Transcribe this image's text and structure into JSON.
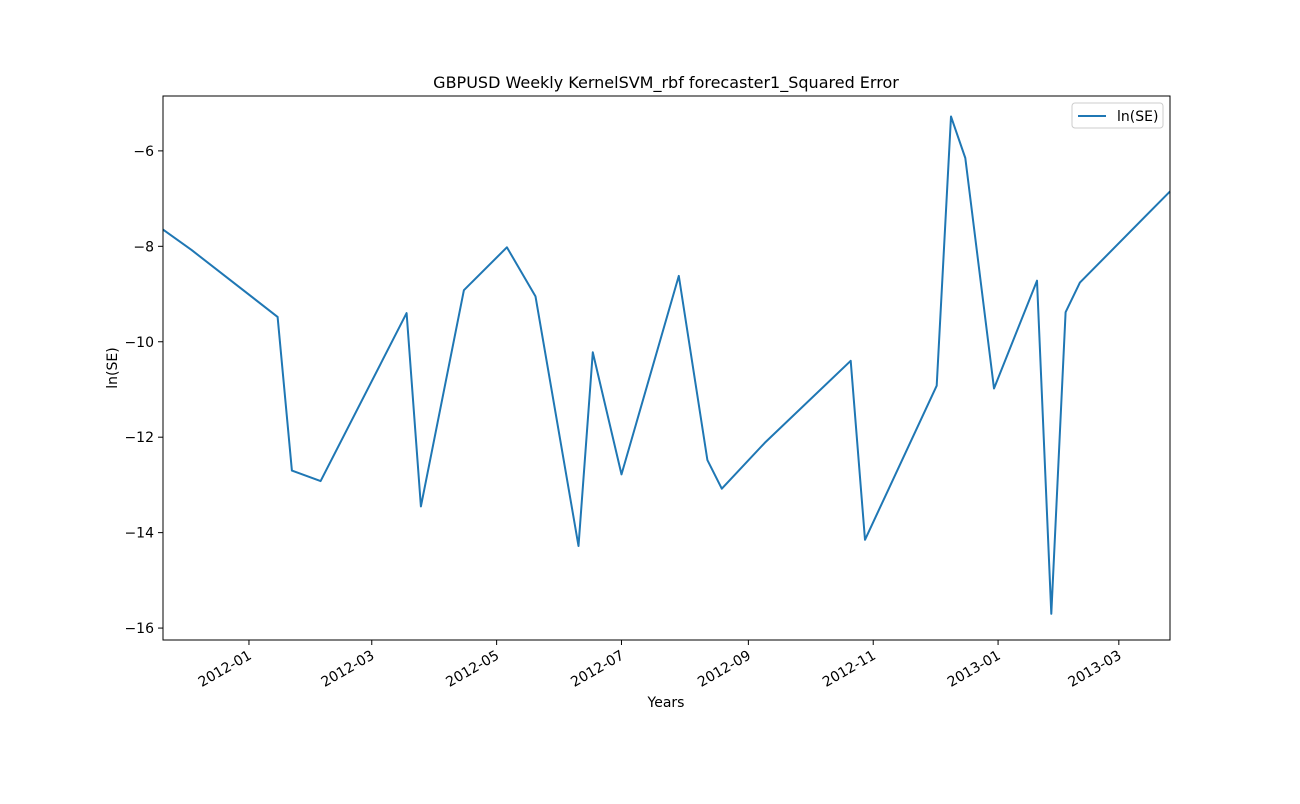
{
  "chart_data": {
    "type": "line",
    "title": "GBPUSD Weekly KernelSVM_rbf forecaster1_Squared Error",
    "xlabel": "Years",
    "ylabel": "ln(SE)",
    "x_axis_type": "date",
    "xlim": [
      "2011-11-20",
      "2013-03-26"
    ],
    "ylim": [
      -16.25,
      -4.85
    ],
    "x_ticks": [
      "2012-01-01",
      "2012-03-01",
      "2012-05-01",
      "2012-07-01",
      "2012-09-01",
      "2012-11-01",
      "2013-01-01",
      "2013-03-01"
    ],
    "x_tick_labels": [
      "2012-01",
      "2012-03",
      "2012-05",
      "2012-07",
      "2012-09",
      "2012-11",
      "2013-01",
      "2013-03"
    ],
    "y_ticks": [
      -6,
      -8,
      -10,
      -12,
      -14,
      -16
    ],
    "y_tick_labels": [
      "−6",
      "−8",
      "−10",
      "−12",
      "−14",
      "−16"
    ],
    "grid": false,
    "legend": {
      "position": "top-right",
      "entries": [
        "ln(SE)"
      ]
    },
    "series": [
      {
        "name": "ln(SE)",
        "color": "#1f77b4",
        "x": [
          "2011-11-20",
          "2011-12-04",
          "2012-01-15",
          "2012-01-22",
          "2012-02-05",
          "2012-03-18",
          "2012-03-25",
          "2012-04-15",
          "2012-05-06",
          "2012-05-20",
          "2012-06-10",
          "2012-06-17",
          "2012-07-01",
          "2012-07-29",
          "2012-08-12",
          "2012-08-19",
          "2012-09-09",
          "2012-10-21",
          "2012-10-28",
          "2012-12-02",
          "2012-12-09",
          "2012-12-16",
          "2012-12-30",
          "2013-01-20",
          "2013-01-27",
          "2013-02-03",
          "2013-02-10",
          "2013-03-26"
        ],
        "y": [
          -7.65,
          -8.08,
          -9.48,
          -12.7,
          -12.92,
          -9.4,
          -13.45,
          -8.92,
          -8.02,
          -9.05,
          -14.28,
          -10.22,
          -12.78,
          -8.62,
          -12.48,
          -13.08,
          -12.12,
          -10.4,
          -14.15,
          -10.92,
          -5.28,
          -6.15,
          -10.98,
          -8.72,
          -15.7,
          -9.38,
          -8.76,
          -6.85
        ]
      }
    ]
  }
}
